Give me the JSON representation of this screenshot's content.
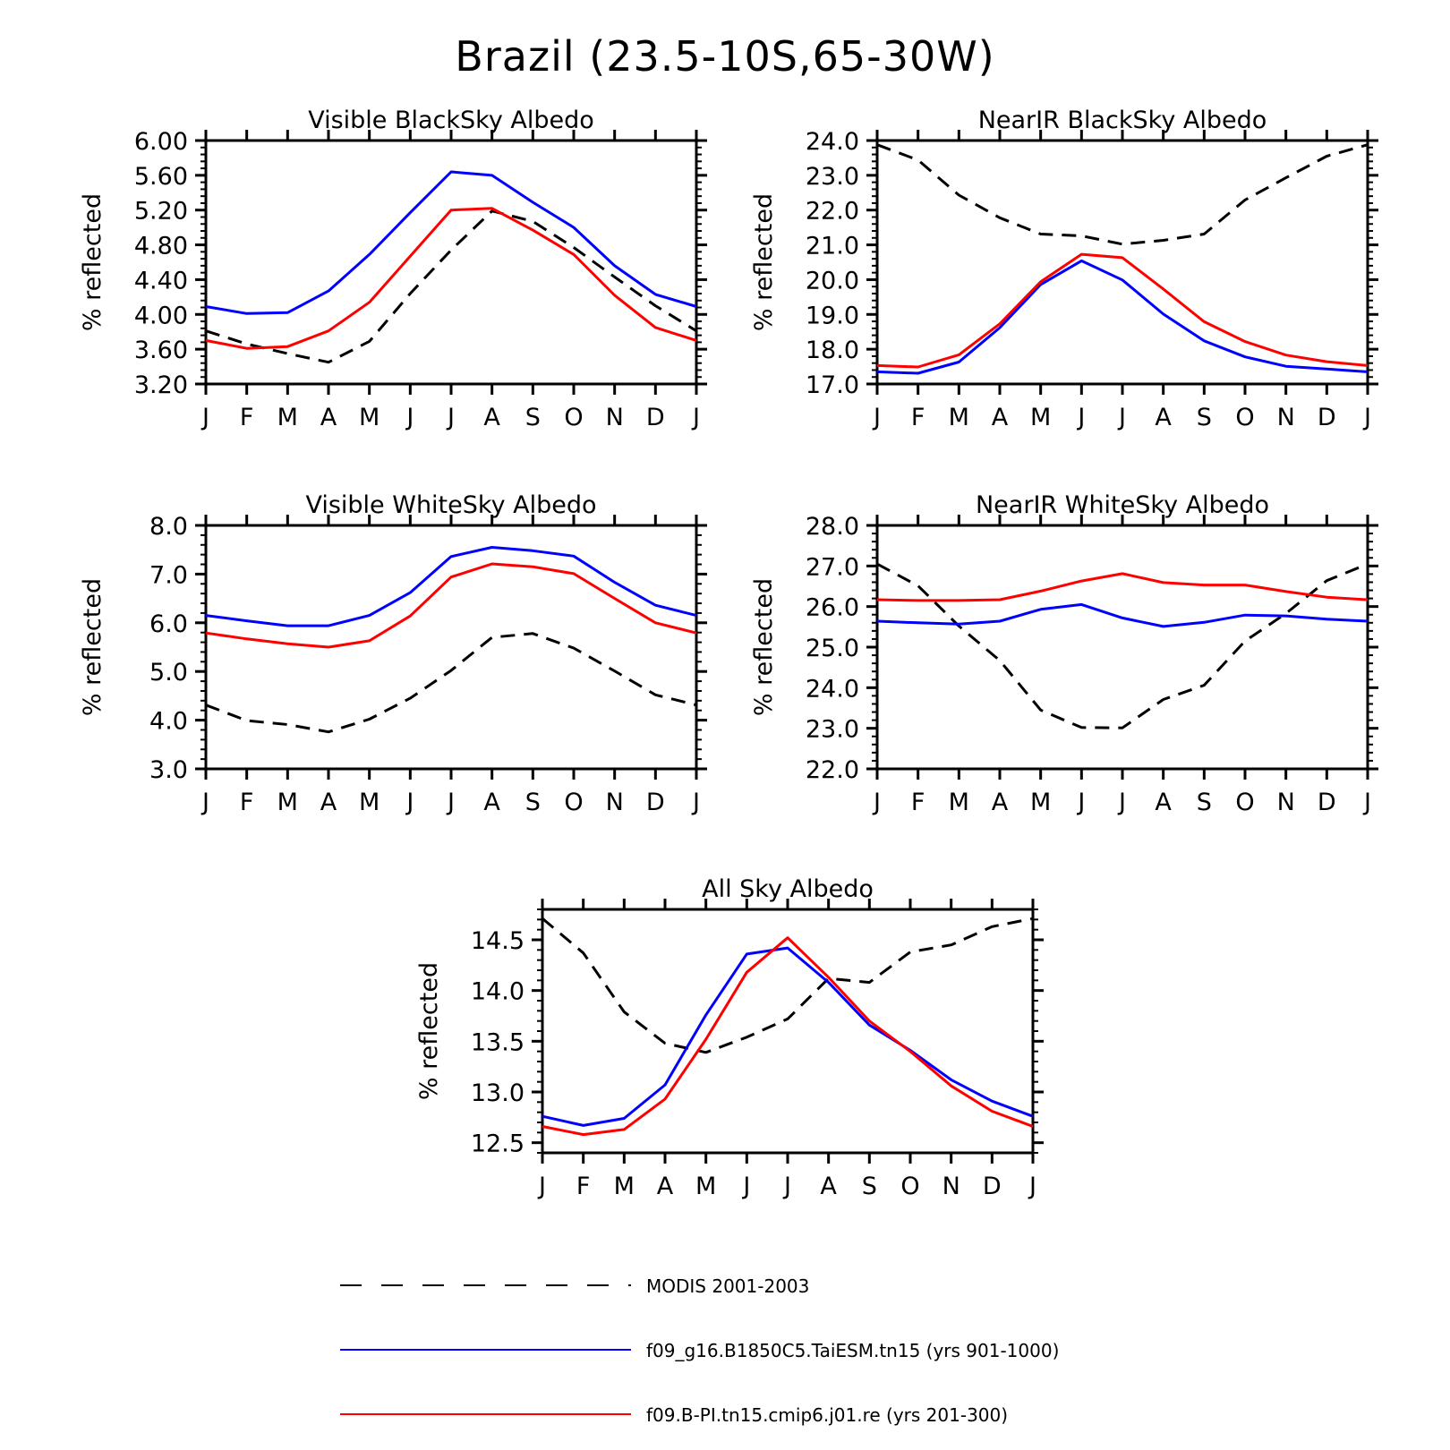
{
  "title": "Brazil (23.5-10S,65-30W)",
  "colors": {
    "modis": "#000000",
    "taiesm": "#0000ff",
    "cmip6": "#ff0000"
  },
  "legend": [
    {
      "key": "modis",
      "label": "MODIS 2001-2003",
      "style": "dashed"
    },
    {
      "key": "taiesm",
      "label": "f09_g16.B1850C5.TaiESM.tn15 (yrs 901-1000)",
      "style": "solid"
    },
    {
      "key": "cmip6",
      "label": "f09.B-PI.tn15.cmip6.j01.re (yrs 201-300)",
      "style": "solid"
    }
  ],
  "chart_data": [
    {
      "type": "line",
      "title": "Visible BlackSky Albedo",
      "ylabel": "% reflected",
      "categories": [
        "J",
        "F",
        "M",
        "A",
        "M",
        "J",
        "J",
        "A",
        "S",
        "O",
        "N",
        "D",
        "J"
      ],
      "ylim": [
        3.2,
        6.0
      ],
      "yticks": [
        "3.20",
        "3.60",
        "4.00",
        "4.40",
        "4.80",
        "5.20",
        "5.60",
        "6.00"
      ],
      "series": [
        {
          "name": "MODIS 2001-2003",
          "key": "modis",
          "values": [
            3.81,
            3.66,
            3.55,
            3.45,
            3.69,
            4.24,
            4.74,
            5.19,
            5.07,
            4.77,
            4.43,
            4.1,
            3.81
          ]
        },
        {
          "name": "f09_g16.B1850C5.TaiESM.tn15 (yrs 901-1000)",
          "key": "taiesm",
          "values": [
            4.09,
            4.01,
            4.02,
            4.27,
            4.69,
            5.17,
            5.64,
            5.6,
            5.29,
            5.0,
            4.56,
            4.23,
            4.09
          ]
        },
        {
          "name": "f09.B-PI.tn15.cmip6.j01.re (yrs 201-300)",
          "key": "cmip6",
          "values": [
            3.7,
            3.61,
            3.63,
            3.81,
            4.14,
            4.67,
            5.2,
            5.22,
            4.97,
            4.69,
            4.22,
            3.85,
            3.7
          ]
        }
      ]
    },
    {
      "type": "line",
      "title": "NearIR BlackSky Albedo",
      "ylabel": "% reflected",
      "categories": [
        "J",
        "F",
        "M",
        "A",
        "M",
        "J",
        "J",
        "A",
        "S",
        "O",
        "N",
        "D",
        "J"
      ],
      "ylim": [
        17.0,
        24.0
      ],
      "yticks": [
        "17.0",
        "18.0",
        "19.0",
        "20.0",
        "21.0",
        "22.0",
        "23.0",
        "24.0"
      ],
      "series": [
        {
          "name": "MODIS 2001-2003",
          "key": "modis",
          "values": [
            23.88,
            23.44,
            22.43,
            21.78,
            21.31,
            21.26,
            21.02,
            21.13,
            21.31,
            22.29,
            22.93,
            23.55,
            23.88
          ]
        },
        {
          "name": "f09_g16.B1850C5.TaiESM.tn15 (yrs 901-1000)",
          "key": "taiesm",
          "values": [
            17.35,
            17.31,
            17.63,
            18.62,
            19.86,
            20.54,
            19.99,
            19.01,
            18.24,
            17.78,
            17.51,
            17.43,
            17.35
          ]
        },
        {
          "name": "f09.B-PI.tn15.cmip6.j01.re (yrs 201-300)",
          "key": "cmip6",
          "values": [
            17.53,
            17.49,
            17.84,
            18.73,
            19.94,
            20.73,
            20.63,
            19.73,
            18.79,
            18.22,
            17.83,
            17.64,
            17.53
          ]
        }
      ]
    },
    {
      "type": "line",
      "title": "Visible WhiteSky Albedo",
      "ylabel": "% reflected",
      "categories": [
        "J",
        "F",
        "M",
        "A",
        "M",
        "J",
        "J",
        "A",
        "S",
        "O",
        "N",
        "D",
        "J"
      ],
      "ylim": [
        3.0,
        8.0
      ],
      "yticks": [
        "3.0",
        "4.0",
        "5.0",
        "6.0",
        "7.0",
        "8.0"
      ],
      "series": [
        {
          "name": "MODIS 2001-2003",
          "key": "modis",
          "values": [
            4.31,
            3.99,
            3.91,
            3.76,
            4.02,
            4.45,
            5.02,
            5.7,
            5.78,
            5.48,
            5.01,
            4.52,
            4.31
          ]
        },
        {
          "name": "f09_g16.B1850C5.TaiESM.tn15 (yrs 901-1000)",
          "key": "taiesm",
          "values": [
            6.15,
            6.04,
            5.94,
            5.94,
            6.15,
            6.62,
            7.36,
            7.55,
            7.48,
            7.37,
            6.83,
            6.36,
            6.15
          ]
        },
        {
          "name": "f09.B-PI.tn15.cmip6.j01.re (yrs 201-300)",
          "key": "cmip6",
          "values": [
            5.79,
            5.67,
            5.57,
            5.5,
            5.63,
            6.14,
            6.94,
            7.21,
            7.15,
            7.01,
            6.5,
            6.0,
            5.79
          ]
        }
      ]
    },
    {
      "type": "line",
      "title": "NearIR WhiteSky Albedo",
      "ylabel": "% reflected",
      "categories": [
        "J",
        "F",
        "M",
        "A",
        "M",
        "J",
        "J",
        "A",
        "S",
        "O",
        "N",
        "D",
        "J"
      ],
      "ylim": [
        22.0,
        28.0
      ],
      "yticks": [
        "22.0",
        "23.0",
        "24.0",
        "25.0",
        "26.0",
        "27.0",
        "28.0"
      ],
      "series": [
        {
          "name": "MODIS 2001-2003",
          "key": "modis",
          "values": [
            27.05,
            26.51,
            25.52,
            24.67,
            23.45,
            23.02,
            23.01,
            23.71,
            24.06,
            25.15,
            25.83,
            26.64,
            27.05
          ]
        },
        {
          "name": "f09_g16.B1850C5.TaiESM.tn15 (yrs 901-1000)",
          "key": "taiesm",
          "values": [
            25.64,
            25.6,
            25.57,
            25.64,
            25.93,
            26.05,
            25.72,
            25.51,
            25.61,
            25.79,
            25.77,
            25.69,
            25.64
          ]
        },
        {
          "name": "f09.B-PI.tn15.cmip6.j01.re (yrs 201-300)",
          "key": "cmip6",
          "values": [
            26.17,
            26.15,
            26.15,
            26.17,
            26.38,
            26.63,
            26.81,
            26.59,
            26.53,
            26.53,
            26.37,
            26.23,
            26.17
          ]
        }
      ]
    },
    {
      "type": "line",
      "title": "All Sky Albedo",
      "ylabel": "% reflected",
      "categories": [
        "J",
        "F",
        "M",
        "A",
        "M",
        "J",
        "J",
        "A",
        "S",
        "O",
        "N",
        "D",
        "J"
      ],
      "ylim": [
        12.4,
        14.8
      ],
      "yticks": [
        "12.5",
        "13.0",
        "13.5",
        "14.0",
        "14.5"
      ],
      "series": [
        {
          "name": "MODIS 2001-2003",
          "key": "modis",
          "values": [
            14.71,
            14.37,
            13.79,
            13.48,
            13.39,
            13.54,
            13.72,
            14.12,
            14.08,
            14.38,
            14.45,
            14.63,
            14.71
          ]
        },
        {
          "name": "f09_g16.B1850C5.TaiESM.tn15 (yrs 901-1000)",
          "key": "taiesm",
          "values": [
            12.76,
            12.67,
            12.74,
            13.07,
            13.76,
            14.36,
            14.42,
            14.08,
            13.66,
            13.41,
            13.12,
            12.91,
            12.76
          ]
        },
        {
          "name": "f09.B-PI.tn15.cmip6.j01.re (yrs 201-300)",
          "key": "cmip6",
          "values": [
            12.66,
            12.58,
            12.63,
            12.93,
            13.52,
            14.18,
            14.52,
            14.13,
            13.7,
            13.4,
            13.06,
            12.81,
            12.66
          ]
        }
      ]
    }
  ]
}
